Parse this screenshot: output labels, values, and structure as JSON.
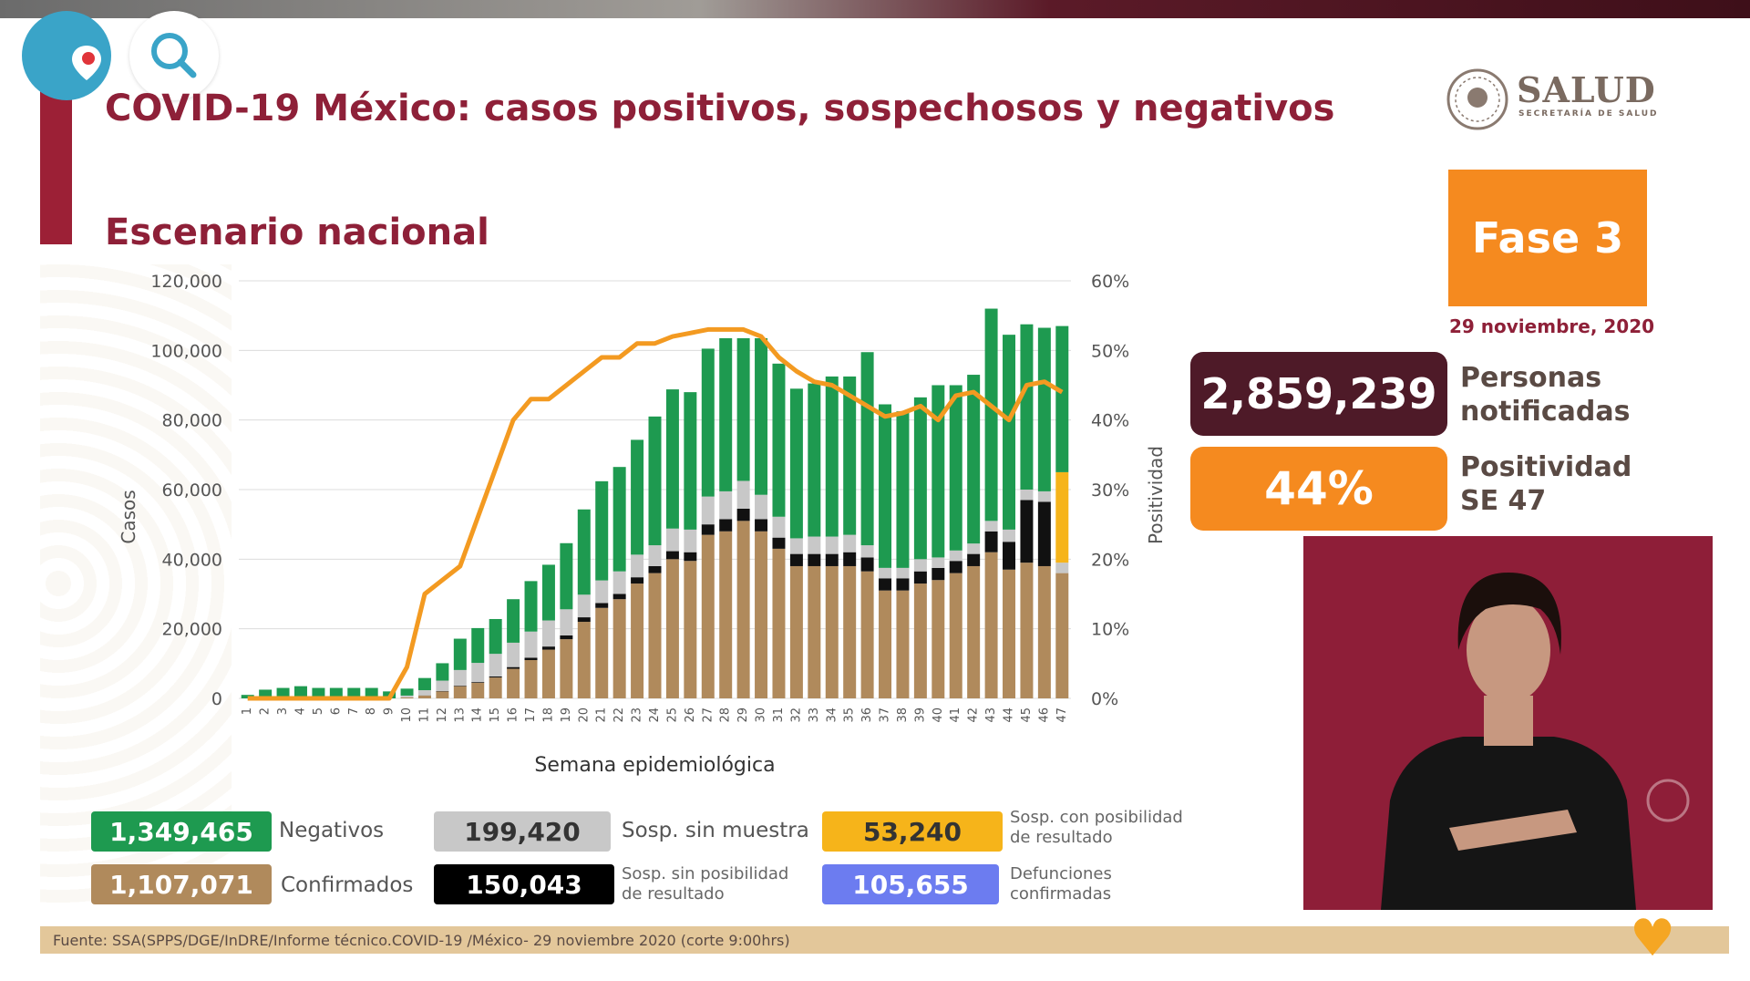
{
  "header": {
    "title": "COVID-19 México: casos positivos, sospechosos y negativos",
    "subtitle": "Escenario nacional",
    "logo_text": "SALUD",
    "logo_subtext": "SECRETARÍA DE SALUD"
  },
  "stream_controls": {
    "periscope_icon": "periscope-pin-icon",
    "search_icon": "search-icon"
  },
  "phase": {
    "label": "Fase 3",
    "date": "29 noviembre, 2020"
  },
  "stats": {
    "notified_value": "2,859,239",
    "notified_label_line1": "Personas",
    "notified_label_line2": "notificadas",
    "positivity_value": "44%",
    "positivity_label_line1": "Positividad",
    "positivity_label_line2": "SE 47"
  },
  "legend": {
    "negativos_value": "1,349,465",
    "negativos_label": "Negativos",
    "confirmados_value": "1,107,071",
    "confirmados_label": "Confirmados",
    "sosp_sin_muestra_value": "199,420",
    "sosp_sin_muestra_label": "Sosp. sin muestra",
    "sosp_sin_posib_value": "150,043",
    "sosp_sin_posib_label1": "Sosp. sin posibilidad",
    "sosp_sin_posib_label2": "de resultado",
    "sosp_con_posib_value": "53,240",
    "sosp_con_posib_label1": "Sosp. con posibilidad",
    "sosp_con_posib_label2": "de resultado",
    "defunciones_value": "105,655",
    "defunciones_label1": "Defunciones",
    "defunciones_label2": "confirmadas"
  },
  "footer": {
    "source": "Fuente: SSA(SPPS/DGE/InDRE/Informe técnico.COVID-19 /México- 29 noviembre 2020 (corte 9:00hrs)"
  },
  "colors": {
    "title": "#8e2038",
    "confirmados": "#b08a5c",
    "sosp_sin_posib": "#111111",
    "sosp_sin_muestra": "#c8c8c8",
    "negativos": "#1e9a50",
    "sosp_con_posib": "#f6b41a",
    "defunciones": "#6c7cf0",
    "positividad_line": "#f39a21",
    "fase": "#f58a1f",
    "notified": "#4e1a28"
  },
  "chart_data": {
    "type": "bar",
    "stacked": true,
    "xlabel": "Semana epidemiológica",
    "ylabel": "Casos",
    "y2label": "Positividad",
    "ylim": [
      0,
      120000
    ],
    "y2lim": [
      0,
      60
    ],
    "yticks": [
      "0",
      "20,000",
      "40,000",
      "60,000",
      "80,000",
      "100,000",
      "120,000"
    ],
    "y2ticks": [
      "0%",
      "10%",
      "20%",
      "30%",
      "40%",
      "50%",
      "60%"
    ],
    "grid": true,
    "categories": [
      "1",
      "2",
      "3",
      "4",
      "5",
      "6",
      "7",
      "8",
      "9",
      "10",
      "11",
      "12",
      "13",
      "14",
      "15",
      "16",
      "17",
      "18",
      "19",
      "20",
      "21",
      "22",
      "23",
      "24",
      "25",
      "26",
      "27",
      "28",
      "29",
      "30",
      "31",
      "32",
      "33",
      "34",
      "35",
      "36",
      "37",
      "38",
      "39",
      "40",
      "41",
      "42",
      "43",
      "44",
      "45",
      "46",
      "47"
    ],
    "series": [
      {
        "name": "Confirmados",
        "values": [
          0,
          0,
          0,
          0,
          0,
          0,
          0,
          0,
          0,
          300,
          800,
          2000,
          3500,
          4500,
          6000,
          8500,
          11000,
          14000,
          17000,
          22000,
          26000,
          28500,
          33000,
          36000,
          40000,
          39500,
          47000,
          48000,
          51000,
          48000,
          43000,
          38000,
          38000,
          38000,
          38000,
          36500,
          31000,
          31000,
          33000,
          34000,
          36000,
          38000,
          42000,
          37000,
          39000,
          38000,
          36000
        ]
      },
      {
        "name": "Sosp. sin posibilidad de resultado",
        "values": [
          0,
          0,
          0,
          0,
          0,
          0,
          0,
          0,
          0,
          0,
          50,
          100,
          150,
          200,
          300,
          500,
          700,
          900,
          1100,
          1300,
          1400,
          1500,
          1800,
          2000,
          2300,
          2500,
          3000,
          3500,
          3500,
          3500,
          3200,
          3500,
          3500,
          3500,
          4000,
          4000,
          3500,
          3500,
          3500,
          3500,
          3500,
          3500,
          6000,
          8000,
          18000,
          18500,
          0
        ]
      },
      {
        "name": "Sosp. sin muestra",
        "values": [
          0,
          0,
          0,
          0,
          0,
          0,
          0,
          0,
          0,
          500,
          1500,
          3000,
          4500,
          5500,
          6500,
          7000,
          7500,
          7500,
          7500,
          6500,
          6500,
          6500,
          6500,
          6000,
          6500,
          6500,
          8000,
          8000,
          8000,
          7000,
          6000,
          4500,
          5000,
          5000,
          5000,
          3500,
          3000,
          3000,
          3500,
          3000,
          3000,
          3000,
          3000,
          3500,
          3000,
          3000,
          3000
        ]
      },
      {
        "name": "Sosp. con posibilidad de resultado",
        "values": [
          0,
          0,
          0,
          0,
          0,
          0,
          0,
          0,
          0,
          0,
          0,
          0,
          0,
          0,
          0,
          0,
          0,
          0,
          0,
          0,
          0,
          0,
          0,
          0,
          0,
          0,
          0,
          0,
          0,
          0,
          0,
          0,
          0,
          0,
          0,
          0,
          0,
          0,
          0,
          0,
          0,
          0,
          0,
          0,
          0,
          0,
          26000
        ]
      },
      {
        "name": "Negativos",
        "values": [
          1000,
          2500,
          3000,
          3500,
          3000,
          3000,
          3000,
          3000,
          2000,
          2000,
          3500,
          5000,
          9000,
          10000,
          10000,
          12500,
          14500,
          16000,
          19000,
          24500,
          28500,
          30000,
          33000,
          37000,
          40000,
          39500,
          42500,
          44000,
          41000,
          45000,
          44000,
          43000,
          44000,
          46000,
          45500,
          55500,
          47000,
          45000,
          46500,
          49500,
          47500,
          48500,
          61000,
          56000,
          47500,
          47000,
          42000
        ]
      }
    ],
    "line": {
      "name": "Positividad",
      "values": [
        0,
        0,
        0,
        0,
        0,
        0,
        0,
        0,
        0,
        4.5,
        15,
        17,
        19,
        26,
        33,
        40,
        43,
        43,
        45,
        47,
        49,
        49,
        51,
        51,
        52,
        52.5,
        53,
        53,
        53,
        52,
        49,
        47,
        45.5,
        45,
        43.5,
        42,
        40.5,
        41,
        42,
        40,
        43.5,
        44,
        42,
        40,
        45,
        45.5,
        44
      ]
    }
  }
}
